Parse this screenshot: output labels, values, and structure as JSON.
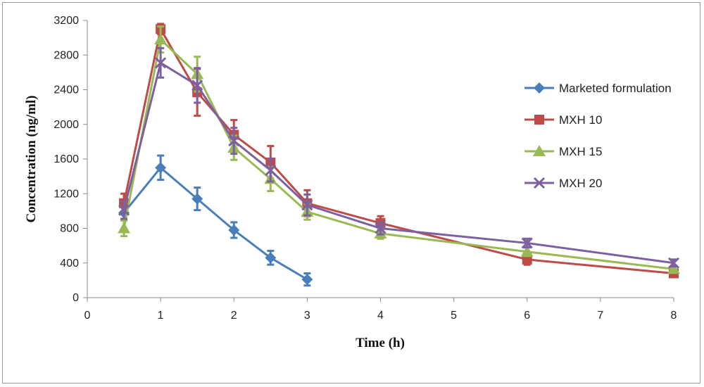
{
  "chart_data": {
    "type": "line",
    "xlabel": "Time (h)",
    "ylabel": "Concentration (ng/ml)",
    "xlim": [
      0,
      8
    ],
    "ylim": [
      0,
      3200
    ],
    "x_ticks": [
      0,
      1,
      2,
      3,
      4,
      5,
      6,
      7,
      8
    ],
    "y_ticks": [
      0,
      400,
      800,
      1200,
      1600,
      2000,
      2400,
      2800,
      3200
    ],
    "grid": false,
    "legend_position": "right",
    "series": [
      {
        "name": "Marketed formulation",
        "color": "#4a7ebb",
        "marker": "diamond",
        "x": [
          0.5,
          1,
          1.5,
          2,
          2.5,
          3
        ],
        "y": [
          980,
          1500,
          1140,
          780,
          460,
          210
        ],
        "error": [
          80,
          140,
          130,
          90,
          80,
          70
        ]
      },
      {
        "name": "MXH 10",
        "color": "#be4b48",
        "marker": "square",
        "x": [
          0.5,
          1,
          1.5,
          2,
          2.5,
          3,
          4,
          6,
          8
        ],
        "y": [
          1090,
          3100,
          2370,
          1880,
          1560,
          1090,
          860,
          440,
          280
        ],
        "error": [
          110,
          60,
          270,
          170,
          190,
          150,
          80,
          60,
          40
        ]
      },
      {
        "name": "MXH 15",
        "color": "#98b954",
        "marker": "triangle",
        "x": [
          0.5,
          1,
          1.5,
          2,
          2.5,
          3,
          4,
          6,
          8
        ],
        "y": [
          800,
          2980,
          2580,
          1730,
          1370,
          990,
          740,
          530,
          330
        ],
        "error": [
          90,
          150,
          200,
          140,
          140,
          90,
          60,
          50,
          40
        ]
      },
      {
        "name": "MXH 20",
        "color": "#7d60a0",
        "marker": "x",
        "x": [
          0.5,
          1,
          1.5,
          2,
          2.5,
          3,
          4,
          6,
          8
        ],
        "y": [
          1010,
          2710,
          2450,
          1810,
          1470,
          1070,
          800,
          630,
          400
        ],
        "error": [
          100,
          170,
          200,
          150,
          130,
          120,
          70,
          50,
          40
        ]
      }
    ]
  }
}
